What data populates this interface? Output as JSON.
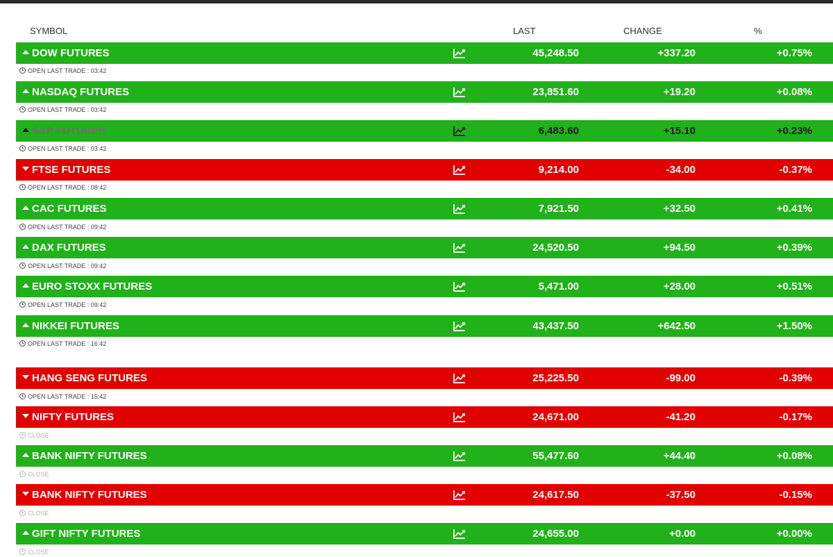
{
  "header": {
    "symbol": "SYMBOL",
    "last": "LAST",
    "change": "CHANGE",
    "pct": "%"
  },
  "icons": {
    "arrow_up": "caret-up-icon",
    "arrow_down": "caret-down-icon",
    "chart": "line-chart-icon",
    "clock": "clock-icon"
  },
  "colors": {
    "up": "#21b11a",
    "down": "#e10000"
  },
  "rows": [
    {
      "name": "DOW FUTURES",
      "direction": "up",
      "last": "45,248.50",
      "change": "+337.20",
      "pct": "+0.75%",
      "status": "OPEN LAST TRADE : 03:42"
    },
    {
      "name": "NASDAQ FUTURES",
      "direction": "up",
      "last": "23,851.60",
      "change": "+19.20",
      "pct": "+0.08%",
      "status": "OPEN LAST TRADE : 03:42"
    },
    {
      "name": "S&P FUTURES",
      "direction": "up",
      "last": "6,483.60",
      "change": "+15.10",
      "pct": "+0.23%",
      "status": "OPEN LAST TRADE : 03:42"
    },
    {
      "name": "FTSE FUTURES",
      "direction": "down",
      "last": "9,214.00",
      "change": "-34.00",
      "pct": "-0.37%",
      "status": "OPEN LAST TRADE : 08:42"
    },
    {
      "name": "CAC FUTURES",
      "direction": "up",
      "last": "7,921.50",
      "change": "+32.50",
      "pct": "+0.41%",
      "status": "OPEN LAST TRADE : 09:42"
    },
    {
      "name": "DAX FUTURES",
      "direction": "up",
      "last": "24,520.50",
      "change": "+94.50",
      "pct": "+0.39%",
      "status": "OPEN LAST TRADE : 09:42"
    },
    {
      "name": "EURO STOXX FUTURES",
      "direction": "up",
      "last": "5,471.00",
      "change": "+28.00",
      "pct": "+0.51%",
      "status": "OPEN LAST TRADE : 09:42"
    },
    {
      "name": "NIKKEI FUTURES",
      "direction": "up",
      "last": "43,437.50",
      "change": "+642.50",
      "pct": "+1.50%",
      "status": "OPEN LAST TRADE : 16:42"
    },
    {
      "name": "HANG SENG FUTURES",
      "direction": "down",
      "last": "25,225.50",
      "change": "-99.00",
      "pct": "-0.39%",
      "status": "OPEN LAST TRADE : 15:42"
    },
    {
      "name": "NIFTY FUTURES",
      "direction": "down",
      "last": "24,671.00",
      "change": "-41.20",
      "pct": "-0.17%",
      "status": "CLOSE"
    },
    {
      "name": "BANK NIFTY FUTURES",
      "direction": "up",
      "last": "55,477.60",
      "change": "+44.40",
      "pct": "+0.08%",
      "status": "CLOSE"
    },
    {
      "name": "BANK NIFTY FUTURES",
      "direction": "down",
      "last": "24,617.50",
      "change": "-37.50",
      "pct": "-0.15%",
      "status": "CLOSE"
    },
    {
      "name": "GIFT NIFTY FUTURES",
      "direction": "up",
      "last": "24,655.00",
      "change": "+0.00",
      "pct": "+0.00%",
      "status": "CLOSE"
    }
  ]
}
